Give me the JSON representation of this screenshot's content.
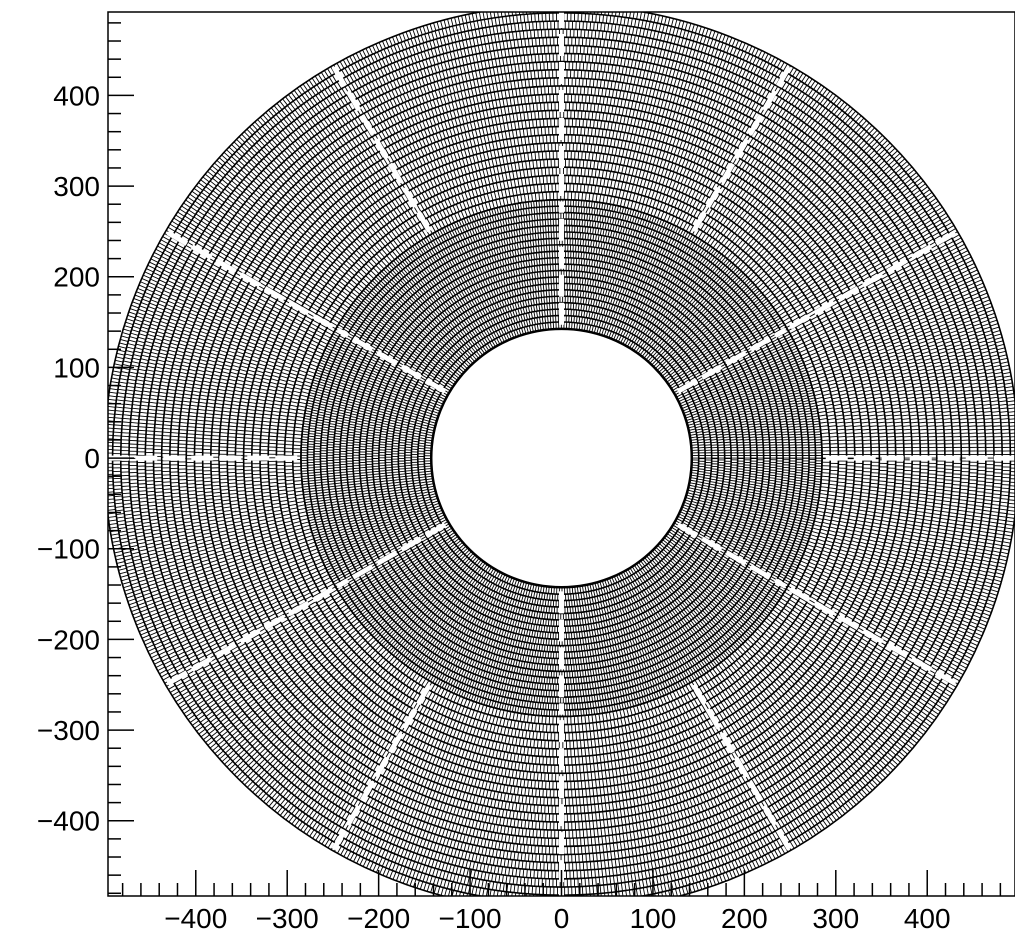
{
  "chart_data": {
    "type": "scatter",
    "description_type": "polar detector geometry (annular cell grid)",
    "title": "",
    "xlabel": "",
    "ylabel": "",
    "xlim": [
      -496,
      496
    ],
    "ylim": [
      -483,
      492
    ],
    "x_major_ticks": [
      -400,
      -300,
      -200,
      -100,
      0,
      100,
      200,
      300,
      400
    ],
    "y_major_ticks": [
      -400,
      -300,
      -200,
      -100,
      0,
      100,
      200,
      300,
      400
    ],
    "x_tick_labels": [
      "−400",
      "−300",
      "−200",
      "−100",
      "0",
      "100",
      "200",
      "300",
      "400"
    ],
    "y_tick_labels": [
      "−400",
      "−300",
      "−200",
      "−100",
      "0",
      "100",
      "200",
      "300",
      "400"
    ],
    "grid": false,
    "inner_region": {
      "r_min": 143,
      "r_max": 285,
      "n_rings": 20,
      "n_sectors": 6,
      "gap_angles_deg": [
        30,
        90,
        150,
        210,
        270,
        330
      ]
    },
    "outer_region": {
      "r_min": 285,
      "r_max": 500,
      "n_rings": 24,
      "n_sectors": 12,
      "gap_angles_deg": [
        0,
        30,
        60,
        90,
        120,
        150,
        180,
        210,
        240,
        270,
        300,
        330
      ]
    },
    "colors": {
      "cell_edge": "#000000",
      "background": "#ffffff",
      "frame": "#000000"
    }
  }
}
